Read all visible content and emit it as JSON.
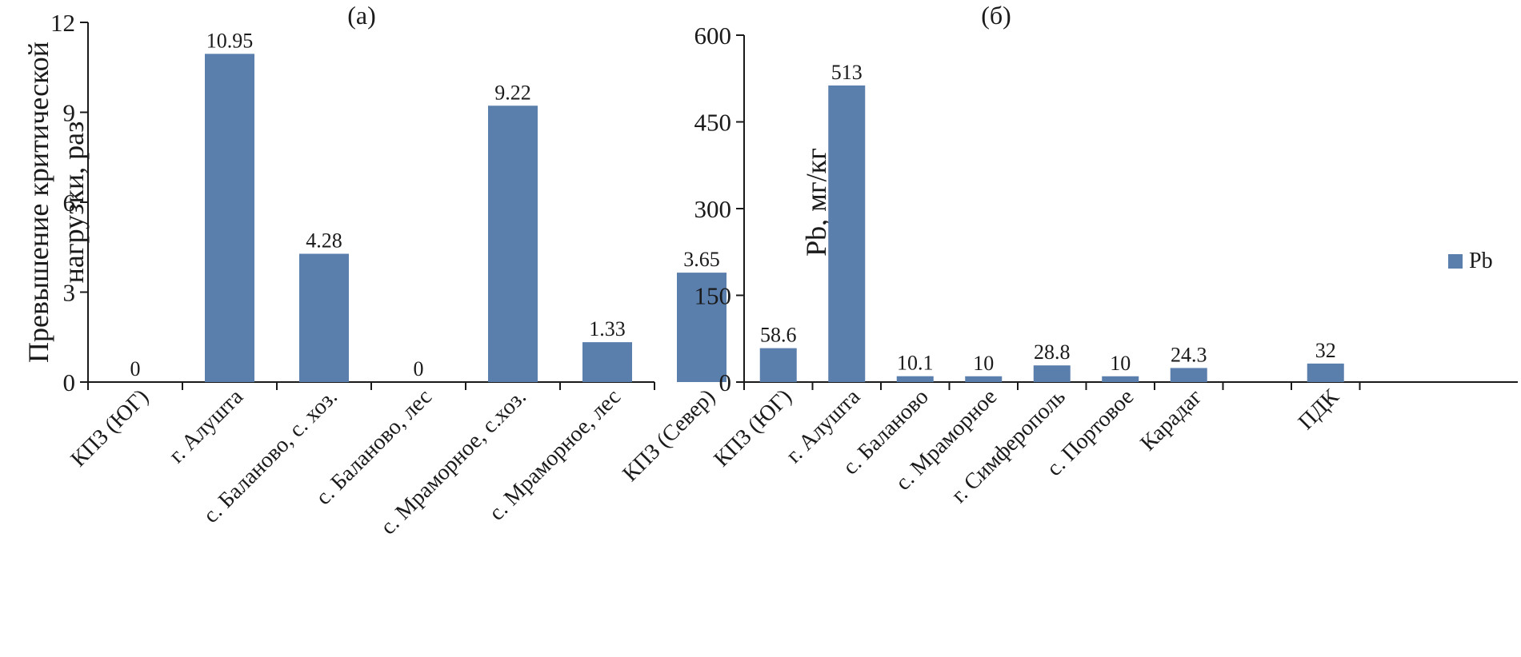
{
  "chart_data": [
    {
      "type": "bar",
      "title": "(а)",
      "ylabel": "Превышение критической нагрузки, раз",
      "ylabel_lines": [
        "Превышение критической",
        "нагрузки, раз"
      ],
      "categories": [
        "КПЗ (ЮГ)",
        "г. Алушта",
        "с. Баланово, с. хоз.",
        "с. Баланово, лес",
        "с. Мраморное, с.хоз.",
        "с. Мраморное, лес",
        "КПЗ (Север)"
      ],
      "values": [
        0,
        10.95,
        4.28,
        0,
        9.22,
        1.33,
        3.65
      ],
      "value_labels": [
        "0",
        "10.95",
        "4.28",
        "0",
        "9.22",
        "1.33",
        "3.65"
      ],
      "ylim": [
        0,
        12
      ],
      "yticks": [
        0,
        3,
        6,
        9,
        12
      ],
      "ytick_labels": [
        "0",
        "3",
        "6",
        "9",
        "12"
      ],
      "bar_color": "#5b7fad",
      "grid": false
    },
    {
      "type": "bar",
      "title": "(б)",
      "ylabel": "Pb, мг/кг",
      "categories": [
        "КПЗ (ЮГ)",
        "г. Алушта",
        "с. Баланово",
        "с. Мраморное",
        "г. Симферополь",
        "с. Портовое",
        "Карадаг",
        "",
        "ПДК"
      ],
      "values": [
        58.6,
        513,
        10.1,
        10,
        28.8,
        10,
        24.3,
        null,
        32
      ],
      "value_labels": [
        "58.6",
        "513",
        "10.1",
        "10",
        "28.8",
        "10",
        "24.3",
        "",
        "32"
      ],
      "ylim": [
        0,
        600
      ],
      "yticks": [
        0,
        150,
        300,
        450,
        600
      ],
      "ytick_labels": [
        "0",
        "150",
        "300",
        "450",
        "600"
      ],
      "legend": {
        "entries": [
          "Pb"
        ],
        "position": "right"
      },
      "bar_color": "#5b7fad",
      "grid": false
    }
  ]
}
